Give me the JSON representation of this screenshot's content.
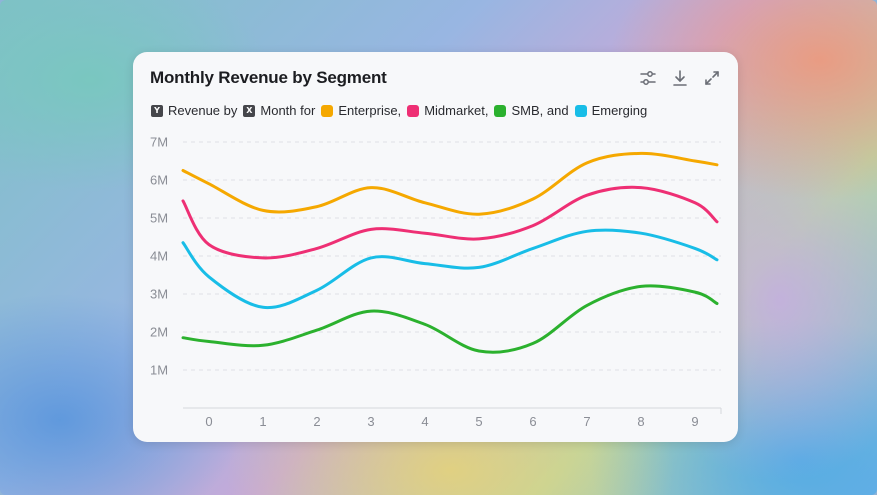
{
  "card": {
    "title": "Monthly Revenue by Segment",
    "icons": [
      "sliders-icon",
      "download-icon",
      "expand-icon"
    ]
  },
  "legend": {
    "y_key": "Y",
    "y_text": "Revenue by",
    "x_key": "X",
    "x_text": "Month for",
    "entries": [
      "Enterprise,",
      "Midmarket,",
      "SMB, and",
      "Emerging"
    ]
  },
  "chart_data": {
    "type": "line",
    "title": "Monthly Revenue by Segment",
    "xlabel": "Month",
    "ylabel": "Revenue",
    "x": [
      0,
      1,
      2,
      3,
      4,
      5,
      6,
      7,
      8,
      9
    ],
    "x_tick_labels": [
      "0",
      "1",
      "2",
      "3",
      "4",
      "5",
      "6",
      "7",
      "8",
      "9"
    ],
    "y_tick_labels": [
      "1M",
      "2M",
      "3M",
      "4M",
      "5M",
      "6M",
      "7M"
    ],
    "y_ticks": [
      1000000,
      2000000,
      3000000,
      4000000,
      5000000,
      6000000,
      7000000
    ],
    "ylim": [
      0,
      7000000
    ],
    "grid": "horizontal-dashed",
    "series": [
      {
        "name": "Enterprise",
        "color": "#f5a800",
        "start": 6250000,
        "values": [
          5900000,
          5200000,
          5300000,
          5800000,
          5400000,
          5100000,
          5500000,
          6450000,
          6700000,
          6500000
        ],
        "end": 6400000
      },
      {
        "name": "Midmarket",
        "color": "#ee2f74",
        "start": 5450000,
        "values": [
          4300000,
          3950000,
          4200000,
          4700000,
          4600000,
          4450000,
          4800000,
          5600000,
          5800000,
          5400000
        ],
        "end": 4900000
      },
      {
        "name": "SMB",
        "color": "#2bb12e",
        "start": 1850000,
        "values": [
          1750000,
          1650000,
          2050000,
          2550000,
          2200000,
          1500000,
          1700000,
          2700000,
          3200000,
          3050000
        ],
        "end": 2750000
      },
      {
        "name": "Emerging",
        "color": "#18bde7",
        "start": 4350000,
        "values": [
          3450000,
          2650000,
          3100000,
          3950000,
          3800000,
          3700000,
          4200000,
          4650000,
          4600000,
          4200000
        ],
        "end": 3900000
      }
    ]
  }
}
